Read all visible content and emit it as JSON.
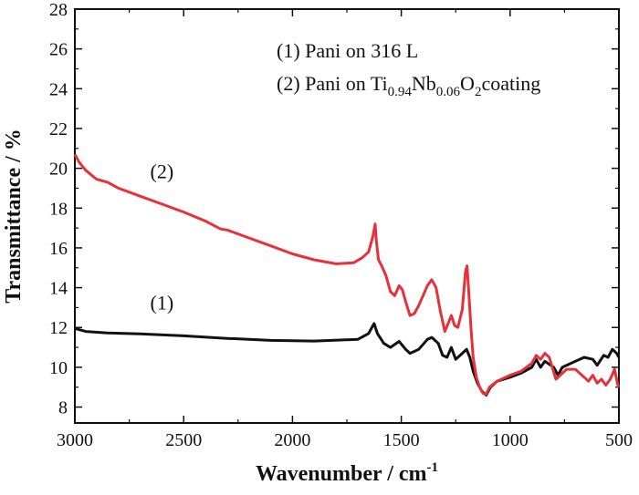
{
  "chart_data": {
    "type": "line",
    "xlabel": "Wavenumber / cm",
    "xlabel_sup": "-1",
    "ylabel": "Transmittance / %",
    "xlim": [
      3000,
      500
    ],
    "ylim": [
      7.2,
      28
    ],
    "x_reversed": true,
    "grid": false,
    "x_ticks": [
      3000,
      2500,
      2000,
      1500,
      1000,
      500
    ],
    "y_ticks": [
      8,
      10,
      12,
      14,
      16,
      18,
      20,
      22,
      24,
      26,
      28
    ],
    "legend": {
      "placement": "top-right",
      "entry1": "(1) Pani on 316 L",
      "entry2_prefix": "(2) Pani on Ti",
      "entry2_sub1": "0.94",
      "entry2_mid1": "Nb",
      "entry2_sub2": "0.06",
      "entry2_mid2": "O",
      "entry2_sub3": "2",
      "entry2_suffix": "coating"
    },
    "series": [
      {
        "label": "(1)",
        "color": "#111111",
        "points": [
          [
            3000,
            11.95
          ],
          [
            2950,
            11.8
          ],
          [
            2850,
            11.72
          ],
          [
            2700,
            11.68
          ],
          [
            2500,
            11.58
          ],
          [
            2300,
            11.45
          ],
          [
            2100,
            11.35
          ],
          [
            1900,
            11.32
          ],
          [
            1700,
            11.4
          ],
          [
            1650,
            11.7
          ],
          [
            1625,
            12.2
          ],
          [
            1610,
            11.7
          ],
          [
            1580,
            11.2
          ],
          [
            1550,
            11.0
          ],
          [
            1510,
            11.3
          ],
          [
            1480,
            10.9
          ],
          [
            1460,
            10.7
          ],
          [
            1420,
            10.9
          ],
          [
            1380,
            11.4
          ],
          [
            1360,
            11.5
          ],
          [
            1330,
            11.2
          ],
          [
            1310,
            10.6
          ],
          [
            1290,
            10.5
          ],
          [
            1270,
            11.0
          ],
          [
            1250,
            10.4
          ],
          [
            1220,
            10.7
          ],
          [
            1200,
            10.9
          ],
          [
            1185,
            10.5
          ],
          [
            1170,
            9.8
          ],
          [
            1150,
            9.2
          ],
          [
            1130,
            8.8
          ],
          [
            1110,
            8.6
          ],
          [
            1090,
            9.0
          ],
          [
            1060,
            9.3
          ],
          [
            1000,
            9.5
          ],
          [
            950,
            9.7
          ],
          [
            900,
            10.0
          ],
          [
            880,
            10.4
          ],
          [
            860,
            10.0
          ],
          [
            840,
            10.3
          ],
          [
            800,
            10.0
          ],
          [
            780,
            9.6
          ],
          [
            760,
            10.0
          ],
          [
            700,
            10.3
          ],
          [
            660,
            10.5
          ],
          [
            620,
            10.4
          ],
          [
            600,
            10.1
          ],
          [
            570,
            10.6
          ],
          [
            550,
            10.5
          ],
          [
            530,
            10.9
          ],
          [
            510,
            10.7
          ],
          [
            500,
            10.5
          ]
        ]
      },
      {
        "label": "(2)",
        "color": "#e8303a",
        "points": [
          [
            3000,
            20.7
          ],
          [
            2980,
            20.3
          ],
          [
            2950,
            19.9
          ],
          [
            2900,
            19.45
          ],
          [
            2850,
            19.3
          ],
          [
            2800,
            19.0
          ],
          [
            2700,
            18.6
          ],
          [
            2600,
            18.2
          ],
          [
            2500,
            17.8
          ],
          [
            2400,
            17.35
          ],
          [
            2330,
            16.95
          ],
          [
            2300,
            16.9
          ],
          [
            2200,
            16.5
          ],
          [
            2100,
            16.1
          ],
          [
            2000,
            15.7
          ],
          [
            1900,
            15.4
          ],
          [
            1800,
            15.2
          ],
          [
            1720,
            15.25
          ],
          [
            1680,
            15.5
          ],
          [
            1650,
            15.8
          ],
          [
            1630,
            16.6
          ],
          [
            1620,
            17.2
          ],
          [
            1615,
            16.4
          ],
          [
            1605,
            15.4
          ],
          [
            1590,
            15.1
          ],
          [
            1570,
            14.6
          ],
          [
            1550,
            13.8
          ],
          [
            1530,
            13.6
          ],
          [
            1510,
            14.1
          ],
          [
            1495,
            13.9
          ],
          [
            1480,
            13.3
          ],
          [
            1460,
            12.6
          ],
          [
            1440,
            12.7
          ],
          [
            1420,
            13.1
          ],
          [
            1400,
            13.6
          ],
          [
            1380,
            14.1
          ],
          [
            1360,
            14.4
          ],
          [
            1340,
            14.0
          ],
          [
            1320,
            12.8
          ],
          [
            1300,
            11.8
          ],
          [
            1285,
            12.2
          ],
          [
            1270,
            12.6
          ],
          [
            1255,
            12.1
          ],
          [
            1240,
            12.0
          ],
          [
            1220,
            12.9
          ],
          [
            1205,
            14.8
          ],
          [
            1198,
            15.1
          ],
          [
            1190,
            13.8
          ],
          [
            1180,
            12.0
          ],
          [
            1170,
            10.5
          ],
          [
            1155,
            9.5
          ],
          [
            1140,
            9.0
          ],
          [
            1125,
            8.7
          ],
          [
            1110,
            8.65
          ],
          [
            1095,
            9.0
          ],
          [
            1060,
            9.3
          ],
          [
            1000,
            9.6
          ],
          [
            950,
            9.8
          ],
          [
            900,
            10.2
          ],
          [
            880,
            10.6
          ],
          [
            860,
            10.4
          ],
          [
            840,
            10.7
          ],
          [
            820,
            10.5
          ],
          [
            790,
            9.4
          ],
          [
            770,
            9.6
          ],
          [
            740,
            9.9
          ],
          [
            700,
            9.9
          ],
          [
            660,
            9.5
          ],
          [
            640,
            9.3
          ],
          [
            620,
            9.6
          ],
          [
            600,
            9.2
          ],
          [
            580,
            9.4
          ],
          [
            560,
            9.1
          ],
          [
            540,
            9.4
          ],
          [
            520,
            9.9
          ],
          [
            505,
            9.1
          ],
          [
            500,
            9.0
          ]
        ]
      }
    ],
    "series_label_anchors": [
      {
        "text": "(1)",
        "x": 2600,
        "y": 12.9
      },
      {
        "text": "(2)",
        "x": 2600,
        "y": 19.5
      }
    ]
  }
}
